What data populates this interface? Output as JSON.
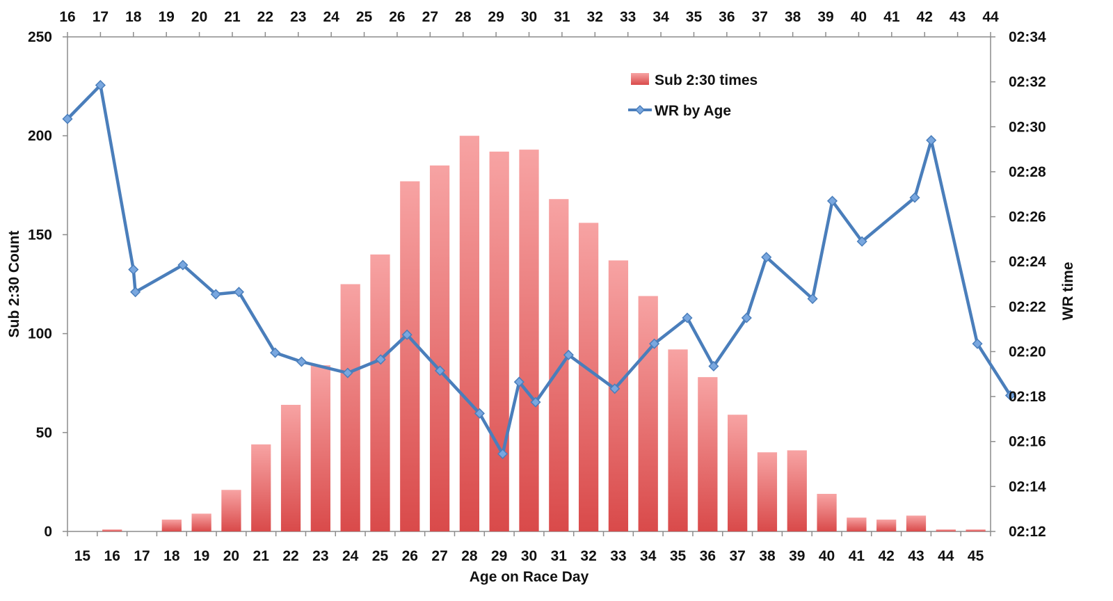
{
  "chart_data": {
    "type": "bar",
    "categories": [
      "15",
      "16",
      "17",
      "18",
      "19",
      "20",
      "21",
      "22",
      "23",
      "24",
      "25",
      "26",
      "27",
      "28",
      "29",
      "30",
      "31",
      "32",
      "33",
      "34",
      "35",
      "36",
      "37",
      "38",
      "39",
      "40",
      "41",
      "42",
      "43",
      "44",
      "45"
    ],
    "series": [
      {
        "name": "Sub 2:30 times",
        "type": "bar",
        "axis": "left",
        "color": "#d94a4a",
        "color_light": "#f7a3a3",
        "values": [
          0,
          1,
          0,
          6,
          9,
          21,
          44,
          64,
          84,
          125,
          140,
          177,
          185,
          200,
          192,
          193,
          168,
          156,
          137,
          119,
          92,
          78,
          59,
          40,
          41,
          19,
          7,
          6,
          8,
          1,
          1
        ]
      },
      {
        "name": "WR by Age",
        "type": "line",
        "axis": "right",
        "x_axis": "top",
        "color": "#4a7ebb",
        "marker_color": "#79a7df",
        "x": [
          16,
          17,
          18,
          18.06,
          19.5,
          20.5,
          21.2,
          22.3,
          23.1,
          24.5,
          25.5,
          26.3,
          27.3,
          28.5,
          29.2,
          29.7,
          30.2,
          31.2,
          32.6,
          33.8,
          34.8,
          35.6,
          36.6,
          37.2,
          38.6,
          39.2,
          40.1,
          41.7,
          42.2,
          43.6,
          44.6
        ],
        "y": [
          150.35,
          151.85,
          143.65,
          142.65,
          143.85,
          142.55,
          142.65,
          139.95,
          139.55,
          139.05,
          139.65,
          140.75,
          139.15,
          137.25,
          135.45,
          138.65,
          137.75,
          139.85,
          138.35,
          140.35,
          141.5,
          139.35,
          141.5,
          144.2,
          142.35,
          146.7,
          144.9,
          146.85,
          149.4,
          140.35,
          138.05
        ],
        "points": [
          {
            "x": 16,
            "y": "02:30"
          },
          {
            "x": 17,
            "y": "02:32"
          }
        ]
      }
    ],
    "x_bottom": {
      "label": "Age on Race Day",
      "ticks": [
        "15",
        "16",
        "17",
        "18",
        "19",
        "20",
        "21",
        "22",
        "23",
        "24",
        "25",
        "26",
        "27",
        "28",
        "29",
        "30",
        "31",
        "32",
        "33",
        "34",
        "35",
        "36",
        "37",
        "38",
        "39",
        "40",
        "41",
        "42",
        "43",
        "44",
        "45"
      ]
    },
    "x_top": {
      "ticks": [
        "16",
        "17",
        "18",
        "19",
        "20",
        "21",
        "22",
        "23",
        "24",
        "25",
        "26",
        "27",
        "28",
        "29",
        "30",
        "31",
        "32",
        "33",
        "34",
        "35",
        "36",
        "37",
        "38",
        "39",
        "40",
        "41",
        "42",
        "43",
        "44"
      ],
      "range": [
        16,
        44
      ]
    },
    "y_left": {
      "label": "Sub 2:30 Count",
      "ticks": [
        "0",
        "50",
        "100",
        "150",
        "200",
        "250"
      ],
      "ylim": [
        0,
        250
      ]
    },
    "y_right": {
      "label": "WR time",
      "ticks": [
        "02:12",
        "02:14",
        "02:16",
        "02:18",
        "02:20",
        "02:22",
        "02:24",
        "02:26",
        "02:28",
        "02:30",
        "02:32",
        "02:34"
      ],
      "ylim": [
        132,
        154
      ]
    },
    "legend": {
      "placement": "top-center",
      "items": [
        "Sub 2:30 times",
        "WR by Age"
      ]
    },
    "grid": false
  }
}
